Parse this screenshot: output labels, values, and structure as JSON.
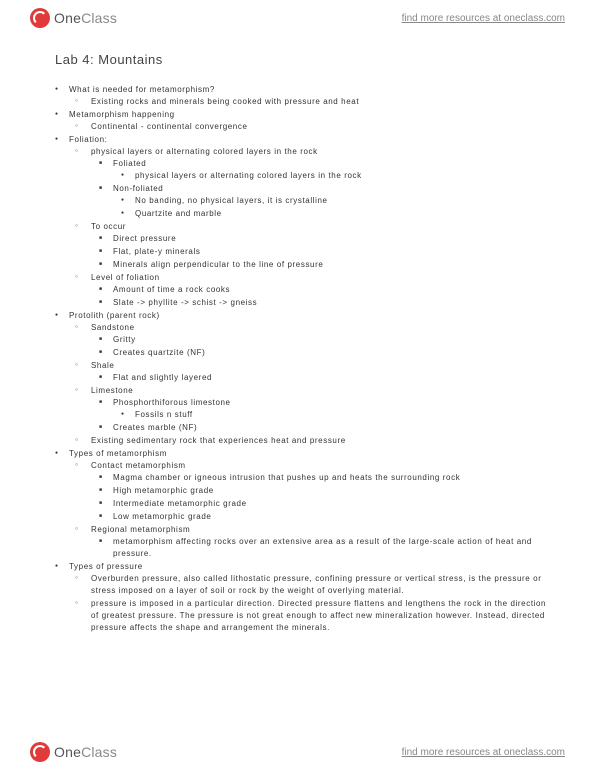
{
  "brand": {
    "one": "One",
    "class": "Class"
  },
  "link_text": "find more resources at oneclass.com",
  "title": "Lab 4: Mountains",
  "items": [
    {
      "t": "What is needed for metamorphism?",
      "c": [
        {
          "t": "Existing rocks and minerals being cooked with pressure and heat"
        }
      ]
    },
    {
      "t": "Metamorphism happening",
      "c": [
        {
          "t": "Continental - continental convergence"
        }
      ]
    },
    {
      "t": "Foliation:",
      "c": [
        {
          "t": "physical layers or alternating colored layers in the rock",
          "c": [
            {
              "t": "Foliated",
              "c": [
                {
                  "t": "physical layers or alternating colored layers in the rock"
                }
              ]
            },
            {
              "t": "Non-foliated",
              "c": [
                {
                  "t": "No banding, no physical layers, it is crystalline"
                },
                {
                  "t": "Quartzite and marble"
                }
              ]
            }
          ]
        },
        {
          "t": "To occur",
          "c": [
            {
              "t": "Direct pressure"
            },
            {
              "t": "Flat, plate-y minerals"
            },
            {
              "t": "Minerals align perpendicular to the line of pressure"
            }
          ]
        },
        {
          "t": "Level of foliation",
          "c": [
            {
              "t": "Amount of time a rock cooks"
            },
            {
              "t": "Slate -> phyllite -> schist -> gneiss"
            }
          ]
        }
      ]
    },
    {
      "t": "Protolith (parent rock)",
      "c": [
        {
          "t": "Sandstone",
          "c": [
            {
              "t": "Gritty"
            },
            {
              "t": "Creates quartzite (NF)"
            }
          ]
        },
        {
          "t": "Shale",
          "c": [
            {
              "t": "Flat and slightly layered"
            }
          ]
        },
        {
          "t": "Limestone",
          "c": [
            {
              "t": "Phosphorthiforous limestone",
              "c": [
                {
                  "t": "Fossils n stuff"
                }
              ]
            },
            {
              "t": "Creates marble (NF)"
            }
          ]
        },
        {
          "t": "Existing sedimentary rock that experiences heat and pressure"
        }
      ]
    },
    {
      "t": "Types of metamorphism",
      "c": [
        {
          "t": "Contact metamorphism",
          "c": [
            {
              "t": "Magma chamber or igneous intrusion that pushes up and heats the surrounding rock"
            },
            {
              "t": "High metamorphic grade"
            },
            {
              "t": "Intermediate metamorphic grade"
            },
            {
              "t": "Low metamorphic grade"
            }
          ]
        },
        {
          "t": "Regional metamorphism",
          "c": [
            {
              "t": "metamorphism affecting rocks over an extensive area as a result of the large-scale action of heat and pressure."
            }
          ]
        }
      ]
    },
    {
      "t": "Types of pressure",
      "c": [
        {
          "t": "Overburden pressure, also called lithostatic pressure, confining pressure or vertical stress, is the pressure or stress imposed on a layer of soil or rock by the weight of overlying material."
        },
        {
          "t": "pressure is imposed in a particular direction. Directed pressure flattens and lengthens the rock in the direction of greatest pressure. The pressure is not great enough to affect new mineralization however. Instead, directed pressure affects the shape and arrangement the minerals."
        }
      ]
    }
  ]
}
